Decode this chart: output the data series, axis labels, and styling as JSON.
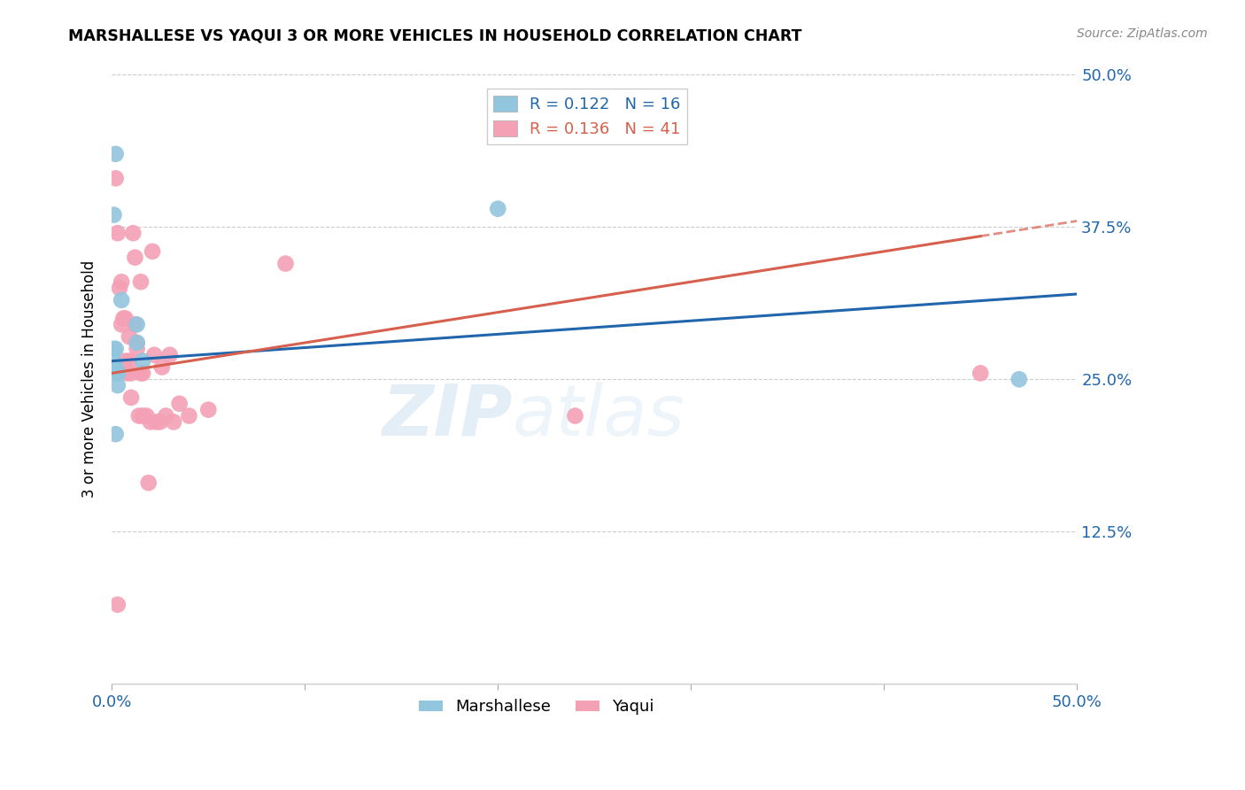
{
  "title": "MARSHALLESE VS YAQUI 3 OR MORE VEHICLES IN HOUSEHOLD CORRELATION CHART",
  "source": "Source: ZipAtlas.com",
  "ylabel": "3 or more Vehicles in Household",
  "watermark": "ZIPatlas",
  "xlim": [
    0.0,
    0.5
  ],
  "ylim": [
    0.0,
    0.5
  ],
  "ytick_positions": [
    0.0,
    0.125,
    0.25,
    0.375,
    0.5
  ],
  "ytick_labels": [
    "",
    "12.5%",
    "25.0%",
    "37.5%",
    "50.0%"
  ],
  "xtick_positions": [
    0.0,
    0.1,
    0.2,
    0.3,
    0.4,
    0.5
  ],
  "xtick_labels": [
    "0.0%",
    "",
    "",
    "",
    "",
    "50.0%"
  ],
  "color_marshallese": "#92c5de",
  "color_yaqui": "#f4a0b5",
  "color_trend_marshallese": "#2166ac",
  "color_trend_yaqui": "#d6604d",
  "legend_r_marshallese": "R = 0.122",
  "legend_n_marshallese": "N = 16",
  "legend_r_yaqui": "R = 0.136",
  "legend_n_yaqui": "N = 41",
  "label_marshallese": "Marshallese",
  "label_yaqui": "Yaqui",
  "marshallese_x": [
    0.002,
    0.001,
    0.001,
    0.001,
    0.002,
    0.002,
    0.003,
    0.003,
    0.003,
    0.005,
    0.013,
    0.013,
    0.016,
    0.2,
    0.47,
    0.002
  ],
  "marshallese_y": [
    0.435,
    0.385,
    0.265,
    0.275,
    0.275,
    0.26,
    0.255,
    0.255,
    0.245,
    0.315,
    0.295,
    0.28,
    0.265,
    0.39,
    0.25,
    0.205
  ],
  "yaqui_x": [
    0.002,
    0.003,
    0.004,
    0.005,
    0.005,
    0.006,
    0.007,
    0.007,
    0.008,
    0.009,
    0.009,
    0.01,
    0.01,
    0.011,
    0.012,
    0.012,
    0.013,
    0.013,
    0.014,
    0.015,
    0.015,
    0.016,
    0.016,
    0.018,
    0.019,
    0.02,
    0.021,
    0.022,
    0.023,
    0.025,
    0.026,
    0.028,
    0.03,
    0.032,
    0.035,
    0.04,
    0.05,
    0.09,
    0.24,
    0.45,
    0.003
  ],
  "yaqui_y": [
    0.415,
    0.37,
    0.325,
    0.33,
    0.295,
    0.3,
    0.3,
    0.265,
    0.255,
    0.285,
    0.265,
    0.255,
    0.235,
    0.37,
    0.35,
    0.295,
    0.28,
    0.275,
    0.22,
    0.33,
    0.255,
    0.255,
    0.22,
    0.22,
    0.165,
    0.215,
    0.355,
    0.27,
    0.215,
    0.215,
    0.26,
    0.22,
    0.27,
    0.215,
    0.23,
    0.22,
    0.225,
    0.345,
    0.22,
    0.255,
    0.065
  ],
  "trend_marshallese_x0": 0.0,
  "trend_marshallese_x1": 0.5,
  "trend_marshallese_y0": 0.265,
  "trend_marshallese_y1": 0.32,
  "trend_yaqui_x0": 0.0,
  "trend_yaqui_x1": 0.5,
  "trend_yaqui_y0": 0.255,
  "trend_yaqui_y1": 0.38,
  "trend_yaqui_solid_end": 0.45
}
